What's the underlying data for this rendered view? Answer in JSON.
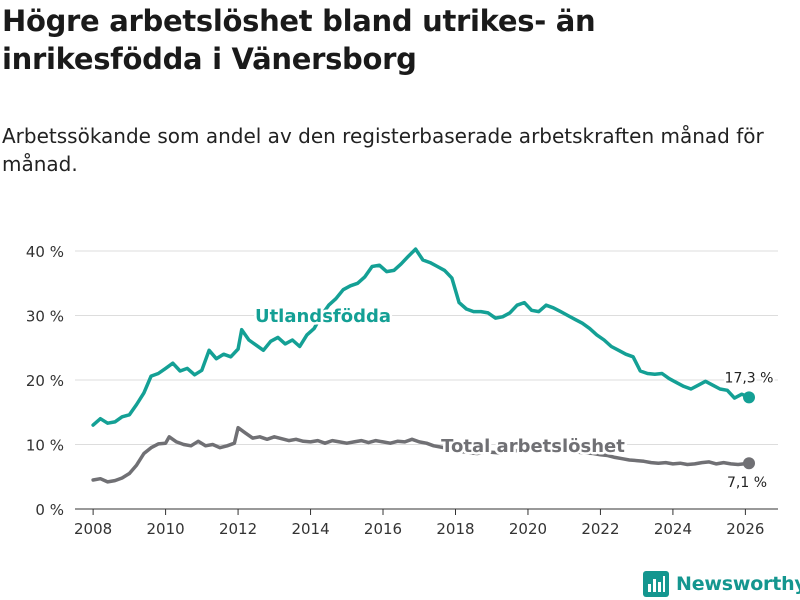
{
  "header": {
    "title": "Högre arbetslöshet bland utrikes- än inrikesfödda i Vänersborg",
    "subtitle": "Arbetssökande som andel av den registerbaserade arbetskraften månad för månad."
  },
  "brand": {
    "name": "Newsworthy",
    "icon": "bar-chart-icon"
  },
  "colors": {
    "foreign_born": "#14a095",
    "total": "#707074",
    "grid": "#dddddd",
    "text": "#333333"
  },
  "chart_data": {
    "type": "line",
    "title": "Högre arbetslöshet bland utrikes- än inrikesfödda i Vänersborg",
    "subtitle": "Arbetssökande som andel av den registerbaserade arbetskraften månad för månad.",
    "xlabel": "",
    "ylabel": "",
    "xlim": [
      2007.5,
      2026.9
    ],
    "ylim": [
      0,
      40
    ],
    "x_ticks": [
      2008,
      2010,
      2012,
      2014,
      2016,
      2018,
      2020,
      2022,
      2024,
      2026
    ],
    "x_tick_labels": [
      "2008",
      "2010",
      "2012",
      "2014",
      "2016",
      "2018",
      "2020",
      "2022",
      "2024",
      "2026"
    ],
    "y_ticks": [
      0,
      10,
      20,
      30,
      40
    ],
    "y_tick_labels": [
      "0 %",
      "10 %",
      "20 %",
      "30 %",
      "40 %"
    ],
    "grid": true,
    "series": [
      {
        "name": "Utlandsfödda",
        "color": "#14a095",
        "end_label": "17,3 %",
        "points": [
          [
            2008.0,
            13.0
          ],
          [
            2008.2,
            14.0
          ],
          [
            2008.4,
            13.3
          ],
          [
            2008.6,
            13.5
          ],
          [
            2008.8,
            14.3
          ],
          [
            2009.0,
            14.6
          ],
          [
            2009.2,
            16.2
          ],
          [
            2009.4,
            18.0
          ],
          [
            2009.6,
            20.6
          ],
          [
            2009.8,
            21.0
          ],
          [
            2010.0,
            21.8
          ],
          [
            2010.2,
            22.6
          ],
          [
            2010.4,
            21.4
          ],
          [
            2010.6,
            21.8
          ],
          [
            2010.8,
            20.8
          ],
          [
            2011.0,
            21.5
          ],
          [
            2011.2,
            24.6
          ],
          [
            2011.4,
            23.3
          ],
          [
            2011.6,
            24.0
          ],
          [
            2011.8,
            23.6
          ],
          [
            2012.0,
            24.8
          ],
          [
            2012.1,
            27.8
          ],
          [
            2012.3,
            26.2
          ],
          [
            2012.5,
            25.4
          ],
          [
            2012.7,
            24.6
          ],
          [
            2012.9,
            26.0
          ],
          [
            2013.1,
            26.6
          ],
          [
            2013.3,
            25.6
          ],
          [
            2013.5,
            26.2
          ],
          [
            2013.7,
            25.2
          ],
          [
            2013.9,
            27.0
          ],
          [
            2014.1,
            28.0
          ],
          [
            2014.3,
            30.0
          ],
          [
            2014.5,
            31.6
          ],
          [
            2014.7,
            32.6
          ],
          [
            2014.9,
            34.0
          ],
          [
            2015.1,
            34.6
          ],
          [
            2015.3,
            35.0
          ],
          [
            2015.5,
            36.0
          ],
          [
            2015.7,
            37.6
          ],
          [
            2015.9,
            37.8
          ],
          [
            2016.1,
            36.8
          ],
          [
            2016.3,
            37.0
          ],
          [
            2016.5,
            38.0
          ],
          [
            2016.7,
            39.2
          ],
          [
            2016.9,
            40.3
          ],
          [
            2017.1,
            38.6
          ],
          [
            2017.3,
            38.2
          ],
          [
            2017.5,
            37.6
          ],
          [
            2017.7,
            37.0
          ],
          [
            2017.9,
            35.8
          ],
          [
            2018.1,
            32.0
          ],
          [
            2018.3,
            31.0
          ],
          [
            2018.5,
            30.6
          ],
          [
            2018.7,
            30.6
          ],
          [
            2018.9,
            30.4
          ],
          [
            2019.1,
            29.6
          ],
          [
            2019.3,
            29.8
          ],
          [
            2019.5,
            30.4
          ],
          [
            2019.7,
            31.6
          ],
          [
            2019.9,
            32.0
          ],
          [
            2020.1,
            30.8
          ],
          [
            2020.3,
            30.6
          ],
          [
            2020.5,
            31.6
          ],
          [
            2020.7,
            31.2
          ],
          [
            2020.9,
            30.6
          ],
          [
            2021.1,
            30.0
          ],
          [
            2021.3,
            29.4
          ],
          [
            2021.5,
            28.8
          ],
          [
            2021.7,
            28.0
          ],
          [
            2021.9,
            27.0
          ],
          [
            2022.1,
            26.2
          ],
          [
            2022.3,
            25.2
          ],
          [
            2022.5,
            24.6
          ],
          [
            2022.7,
            24.0
          ],
          [
            2022.9,
            23.6
          ],
          [
            2023.1,
            21.4
          ],
          [
            2023.3,
            21.0
          ],
          [
            2023.5,
            20.9
          ],
          [
            2023.7,
            21.0
          ],
          [
            2023.9,
            20.2
          ],
          [
            2024.1,
            19.6
          ],
          [
            2024.3,
            19.0
          ],
          [
            2024.5,
            18.6
          ],
          [
            2024.7,
            19.2
          ],
          [
            2024.9,
            19.8
          ],
          [
            2025.1,
            19.2
          ],
          [
            2025.3,
            18.6
          ],
          [
            2025.5,
            18.4
          ],
          [
            2025.7,
            17.2
          ],
          [
            2025.9,
            17.8
          ],
          [
            2026.1,
            17.3
          ]
        ]
      },
      {
        "name": "Total arbetslöshet",
        "color": "#707074",
        "end_label": "7,1 %",
        "points": [
          [
            2008.0,
            4.5
          ],
          [
            2008.2,
            4.7
          ],
          [
            2008.4,
            4.2
          ],
          [
            2008.6,
            4.4
          ],
          [
            2008.8,
            4.8
          ],
          [
            2009.0,
            5.5
          ],
          [
            2009.2,
            6.8
          ],
          [
            2009.4,
            8.6
          ],
          [
            2009.6,
            9.5
          ],
          [
            2009.8,
            10.1
          ],
          [
            2010.0,
            10.2
          ],
          [
            2010.1,
            11.2
          ],
          [
            2010.3,
            10.4
          ],
          [
            2010.5,
            10.0
          ],
          [
            2010.7,
            9.8
          ],
          [
            2010.9,
            10.5
          ],
          [
            2011.1,
            9.8
          ],
          [
            2011.3,
            10.0
          ],
          [
            2011.5,
            9.5
          ],
          [
            2011.7,
            9.8
          ],
          [
            2011.9,
            10.2
          ],
          [
            2012.0,
            12.6
          ],
          [
            2012.2,
            11.8
          ],
          [
            2012.4,
            11.0
          ],
          [
            2012.6,
            11.2
          ],
          [
            2012.8,
            10.8
          ],
          [
            2013.0,
            11.2
          ],
          [
            2013.2,
            10.9
          ],
          [
            2013.4,
            10.6
          ],
          [
            2013.6,
            10.8
          ],
          [
            2013.8,
            10.5
          ],
          [
            2014.0,
            10.4
          ],
          [
            2014.2,
            10.6
          ],
          [
            2014.4,
            10.2
          ],
          [
            2014.6,
            10.6
          ],
          [
            2014.8,
            10.4
          ],
          [
            2015.0,
            10.2
          ],
          [
            2015.2,
            10.4
          ],
          [
            2015.4,
            10.6
          ],
          [
            2015.6,
            10.3
          ],
          [
            2015.8,
            10.6
          ],
          [
            2016.0,
            10.4
          ],
          [
            2016.2,
            10.2
          ],
          [
            2016.4,
            10.5
          ],
          [
            2016.6,
            10.4
          ],
          [
            2016.8,
            10.8
          ],
          [
            2017.0,
            10.4
          ],
          [
            2017.2,
            10.2
          ],
          [
            2017.4,
            9.8
          ],
          [
            2017.6,
            9.6
          ],
          [
            2017.8,
            9.4
          ],
          [
            2018.0,
            9.2
          ],
          [
            2018.2,
            8.9
          ],
          [
            2018.4,
            8.7
          ],
          [
            2018.6,
            8.6
          ],
          [
            2018.8,
            8.8
          ],
          [
            2019.0,
            8.8
          ],
          [
            2019.2,
            8.7
          ],
          [
            2019.4,
            8.9
          ],
          [
            2019.6,
            9.0
          ],
          [
            2019.8,
            9.1
          ],
          [
            2020.0,
            9.4
          ],
          [
            2020.2,
            9.6
          ],
          [
            2020.4,
            9.8
          ],
          [
            2020.6,
            9.6
          ],
          [
            2020.8,
            9.5
          ],
          [
            2021.0,
            9.2
          ],
          [
            2021.2,
            9.0
          ],
          [
            2021.4,
            8.8
          ],
          [
            2021.6,
            8.7
          ],
          [
            2021.8,
            8.6
          ],
          [
            2022.0,
            8.4
          ],
          [
            2022.2,
            8.3
          ],
          [
            2022.4,
            8.0
          ],
          [
            2022.6,
            7.8
          ],
          [
            2022.8,
            7.6
          ],
          [
            2023.0,
            7.5
          ],
          [
            2023.2,
            7.4
          ],
          [
            2023.4,
            7.2
          ],
          [
            2023.6,
            7.1
          ],
          [
            2023.8,
            7.2
          ],
          [
            2024.0,
            7.0
          ],
          [
            2024.2,
            7.1
          ],
          [
            2024.4,
            6.9
          ],
          [
            2024.6,
            7.0
          ],
          [
            2024.8,
            7.2
          ],
          [
            2025.0,
            7.3
          ],
          [
            2025.2,
            7.0
          ],
          [
            2025.4,
            7.2
          ],
          [
            2025.6,
            7.0
          ],
          [
            2025.8,
            6.9
          ],
          [
            2026.1,
            7.1
          ]
        ]
      }
    ]
  }
}
